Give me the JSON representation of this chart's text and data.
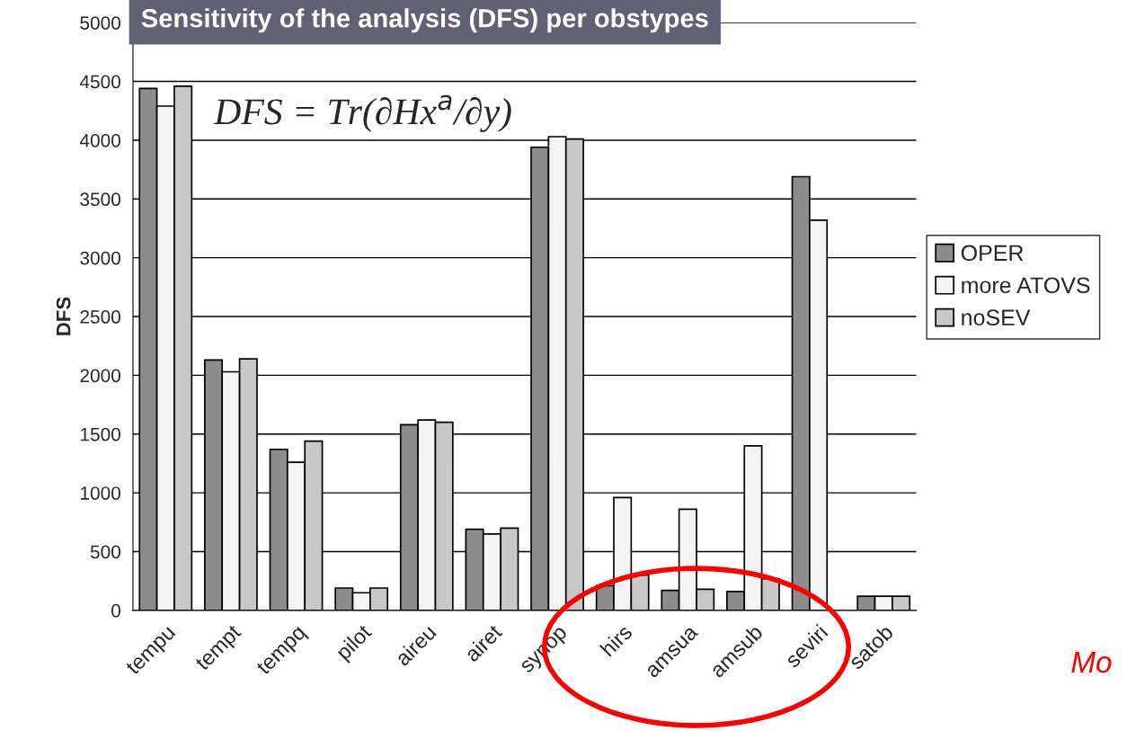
{
  "chart_data": {
    "type": "bar",
    "title": "Sensitivity of the analysis (DFS) per obstypes",
    "ylabel": "DFS",
    "categories": [
      "tempu",
      "tempt",
      "tempq",
      "pilot",
      "aireu",
      "airet",
      "synop",
      "hirs",
      "amsua",
      "amsub",
      "seviri",
      "satob"
    ],
    "series": [
      {
        "name": "OPER",
        "color": "#8c8c8c",
        "values": [
          4440,
          2130,
          1370,
          190,
          1580,
          690,
          3940,
          210,
          170,
          160,
          3690,
          120
        ]
      },
      {
        "name": "more ATOVS",
        "color": "#f4f4f4",
        "values": [
          4290,
          2030,
          1260,
          150,
          1620,
          650,
          4030,
          960,
          860,
          1400,
          3320,
          120
        ]
      },
      {
        "name": "noSEV",
        "color": "#c8c8c8",
        "values": [
          4460,
          2140,
          1440,
          190,
          1600,
          700,
          4010,
          300,
          180,
          270,
          null,
          120
        ]
      }
    ],
    "ylim": [
      0,
      5000
    ],
    "yticks": [
      0,
      500,
      1000,
      1500,
      2000,
      2500,
      3000,
      3500,
      4000,
      4500,
      5000
    ],
    "grid": "y",
    "legend": "right",
    "annotations": [
      "DFS = Tr(∂Hx$^{a}$/∂y)",
      "Mo"
    ]
  }
}
